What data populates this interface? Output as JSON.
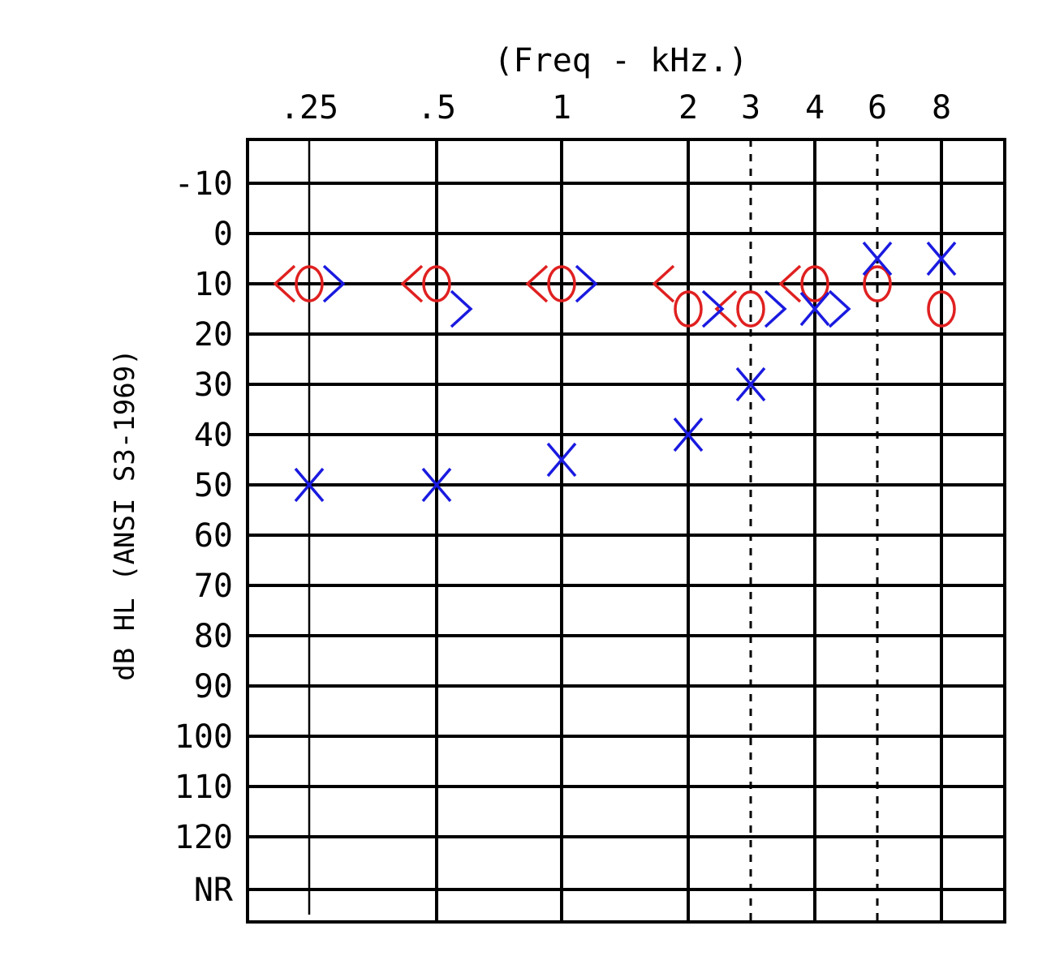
{
  "chart_data": {
    "type": "scatter",
    "title": "(Freq - kHz.)",
    "xlabel": "(Freq - kHz.)",
    "ylabel": "dB HL (ANSI S3-1969)",
    "x_ticks": [
      ".25",
      ".5",
      "1",
      "2",
      "3",
      "4",
      "6",
      "8"
    ],
    "x_values_khz": [
      0.25,
      0.5,
      1,
      2,
      3,
      4,
      6,
      8
    ],
    "dashed_frequencies_khz": [
      3,
      6
    ],
    "y_ticks": [
      "-10",
      "0",
      "10",
      "20",
      "30",
      "40",
      "50",
      "60",
      "70",
      "80",
      "90",
      "100",
      "110",
      "120",
      "NR"
    ],
    "ylim": [
      -10,
      120
    ],
    "y_inverted": true,
    "grid": true,
    "series": [
      {
        "symbol": "O",
        "color": "#e02020",
        "points": [
          [
            0.25,
            10
          ],
          [
            0.5,
            10
          ],
          [
            1,
            10
          ],
          [
            2,
            15
          ],
          [
            3,
            15
          ],
          [
            4,
            10
          ],
          [
            6,
            10
          ],
          [
            8,
            15
          ]
        ]
      },
      {
        "symbol": "<",
        "color": "#e02020",
        "points": [
          [
            0.25,
            10
          ],
          [
            0.5,
            10
          ],
          [
            1,
            10
          ],
          [
            2,
            10
          ],
          [
            3,
            15
          ],
          [
            4,
            10
          ]
        ]
      },
      {
        "symbol": "X",
        "color": "#1a1ae0",
        "points": [
          [
            0.25,
            50
          ],
          [
            0.5,
            50
          ],
          [
            1,
            45
          ],
          [
            2,
            40
          ],
          [
            3,
            30
          ],
          [
            4,
            15
          ],
          [
            6,
            5
          ],
          [
            8,
            5
          ]
        ]
      },
      {
        "symbol": ">",
        "color": "#1a1ae0",
        "points": [
          [
            0.25,
            10
          ],
          [
            0.5,
            15
          ],
          [
            1,
            10
          ],
          [
            2,
            15
          ],
          [
            3,
            15
          ],
          [
            4,
            15
          ]
        ]
      }
    ]
  }
}
